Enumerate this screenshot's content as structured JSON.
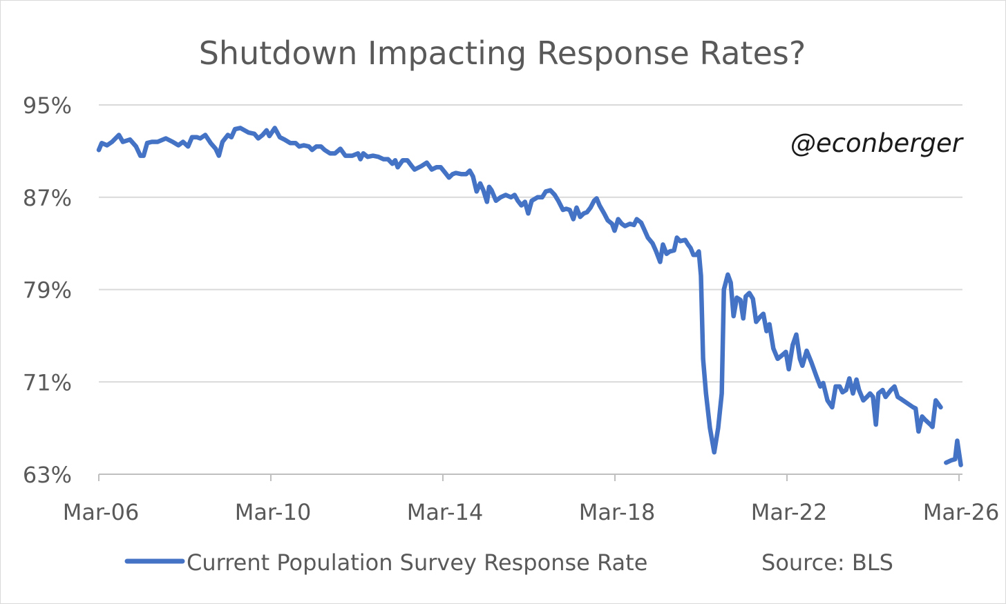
{
  "chart_data": {
    "type": "line",
    "title": "Shutdown Impacting Response Rates?",
    "watermark": "@econberger",
    "source": "Source: BLS",
    "xlabel": "",
    "ylabel": "",
    "x_unit": "months since Mar-2006",
    "x_ticks": [
      {
        "month": 0,
        "label": "Mar-06"
      },
      {
        "month": 48,
        "label": "Mar-10"
      },
      {
        "month": 96,
        "label": "Mar-14"
      },
      {
        "month": 144,
        "label": "Mar-18"
      },
      {
        "month": 192,
        "label": "Mar-22"
      },
      {
        "month": 240,
        "label": "Mar-26"
      }
    ],
    "y_ticks": [
      {
        "value": 95,
        "label": "95%"
      },
      {
        "value": 87,
        "label": "87%"
      },
      {
        "value": 79,
        "label": "79%"
      },
      {
        "value": 71,
        "label": "71%"
      },
      {
        "value": 63,
        "label": "63%"
      }
    ],
    "xlim": [
      0,
      240
    ],
    "ylim": [
      63,
      95
    ],
    "grid": true,
    "legend_position": "bottom",
    "colors": {
      "line": "#4472C4",
      "grid": "#d9d9d9",
      "axis": "#bfbfbf",
      "text": "#595959",
      "watermark": "#1a1a1a"
    },
    "series": [
      {
        "name": "Current Population Survey Response Rate",
        "segments": [
          [
            [
              0,
              91.1
            ],
            [
              0.8,
              91.7
            ],
            [
              2.3,
              91.5
            ],
            [
              3.7,
              91.8
            ],
            [
              5.6,
              92.4
            ],
            [
              6.7,
              91.8
            ],
            [
              8.7,
              92.0
            ],
            [
              10.4,
              91.4
            ],
            [
              11.6,
              90.6
            ],
            [
              12.5,
              90.6
            ],
            [
              13.5,
              91.7
            ],
            [
              14.8,
              91.8
            ],
            [
              16.4,
              91.8
            ],
            [
              18.7,
              92.1
            ],
            [
              20.6,
              91.8
            ],
            [
              22.2,
              91.5
            ],
            [
              23.5,
              91.8
            ],
            [
              24.9,
              91.4
            ],
            [
              26,
              92.2
            ],
            [
              27.4,
              92.2
            ],
            [
              28.3,
              92.1
            ],
            [
              29.7,
              92.4
            ],
            [
              31.2,
              91.7
            ],
            [
              32.6,
              91.2
            ],
            [
              33.5,
              90.6
            ],
            [
              34.5,
              91.8
            ],
            [
              36,
              92.4
            ],
            [
              37,
              92.2
            ],
            [
              38,
              92.9
            ],
            [
              39.5,
              93.0
            ],
            [
              41.8,
              92.6
            ],
            [
              43.4,
              92.5
            ],
            [
              44.5,
              92.1
            ],
            [
              45.7,
              92.4
            ],
            [
              46.8,
              92.8
            ],
            [
              47.6,
              92.3
            ],
            [
              49.1,
              93.0
            ],
            [
              50.5,
              92.2
            ],
            [
              51.8,
              92.0
            ],
            [
              53.4,
              91.7
            ],
            [
              54.9,
              91.7
            ],
            [
              55.9,
              91.4
            ],
            [
              57.2,
              91.5
            ],
            [
              58.6,
              91.4
            ],
            [
              59.5,
              91.1
            ],
            [
              60.7,
              91.4
            ],
            [
              62,
              91.4
            ],
            [
              63,
              91.1
            ],
            [
              64.5,
              90.8
            ],
            [
              65.9,
              90.8
            ],
            [
              67.4,
              91.2
            ],
            [
              68.8,
              90.6
            ],
            [
              70.7,
              90.6
            ],
            [
              72.3,
              90.8
            ],
            [
              73,
              90.3
            ],
            [
              73.8,
              90.8
            ],
            [
              75,
              90.5
            ],
            [
              76.5,
              90.6
            ],
            [
              78,
              90.5
            ],
            [
              79.4,
              90.3
            ],
            [
              80.7,
              90.3
            ],
            [
              81.9,
              89.9
            ],
            [
              82.7,
              90.2
            ],
            [
              83.4,
              89.6
            ],
            [
              84.8,
              90.2
            ],
            [
              86.1,
              90.2
            ],
            [
              87.3,
              89.7
            ],
            [
              88.1,
              89.4
            ],
            [
              90,
              89.7
            ],
            [
              91.5,
              90.0
            ],
            [
              92.9,
              89.4
            ],
            [
              94.2,
              89.6
            ],
            [
              95.4,
              89.6
            ],
            [
              96.7,
              89.1
            ],
            [
              97.7,
              88.7
            ],
            [
              98.7,
              89.0
            ],
            [
              99.6,
              89.1
            ],
            [
              101.2,
              89.0
            ],
            [
              102.5,
              89.0
            ],
            [
              103.5,
              89.3
            ],
            [
              104.4,
              88.8
            ],
            [
              105.4,
              87.5
            ],
            [
              106.4,
              88.2
            ],
            [
              107.3,
              87.6
            ],
            [
              108.3,
              86.6
            ],
            [
              108.9,
              87.9
            ],
            [
              109.6,
              87.6
            ],
            [
              110.8,
              86.7
            ],
            [
              112.1,
              87.0
            ],
            [
              113.5,
              87.2
            ],
            [
              115,
              87.0
            ],
            [
              116,
              87.2
            ],
            [
              116.9,
              86.7
            ],
            [
              117.9,
              86.3
            ],
            [
              118.9,
              86.6
            ],
            [
              119.8,
              85.6
            ],
            [
              120.8,
              86.7
            ],
            [
              122.4,
              87.0
            ],
            [
              123.7,
              87.0
            ],
            [
              124.7,
              87.5
            ],
            [
              126,
              87.6
            ],
            [
              127.2,
              87.2
            ],
            [
              128.2,
              86.7
            ],
            [
              129.5,
              85.9
            ],
            [
              130.4,
              86.0
            ],
            [
              131.4,
              85.9
            ],
            [
              132.4,
              85.1
            ],
            [
              133.3,
              86.1
            ],
            [
              134.3,
              85.3
            ],
            [
              135.3,
              85.6
            ],
            [
              136.2,
              85.7
            ],
            [
              137.2,
              86.1
            ],
            [
              138.2,
              86.7
            ],
            [
              138.9,
              86.9
            ],
            [
              139.7,
              86.3
            ],
            [
              141,
              85.6
            ],
            [
              142,
              85.0
            ],
            [
              143.2,
              84.7
            ],
            [
              143.9,
              84.1
            ],
            [
              144.9,
              85.1
            ],
            [
              145.9,
              84.7
            ],
            [
              146.8,
              84.5
            ],
            [
              148.2,
              84.7
            ],
            [
              149.3,
              84.6
            ],
            [
              150.1,
              85.1
            ],
            [
              151.3,
              84.8
            ],
            [
              152.2,
              84.2
            ],
            [
              153.2,
              83.5
            ],
            [
              154.5,
              83.0
            ],
            [
              155.5,
              82.3
            ],
            [
              156.6,
              81.4
            ],
            [
              157.4,
              82.9
            ],
            [
              158.4,
              82.1
            ],
            [
              159.3,
              82.3
            ],
            [
              160.5,
              82.4
            ],
            [
              161.3,
              83.5
            ],
            [
              162.2,
              83.2
            ],
            [
              163.6,
              83.3
            ],
            [
              164.4,
              82.9
            ],
            [
              165.1,
              82.6
            ],
            [
              165.9,
              82.0
            ],
            [
              166.7,
              82.0
            ],
            [
              167.4,
              82.3
            ],
            [
              168,
              80.2
            ],
            [
              168.6,
              73.0
            ],
            [
              169.4,
              70.0
            ],
            [
              170.5,
              67.0
            ],
            [
              171.7,
              64.9
            ],
            [
              172.8,
              67.0
            ],
            [
              173.8,
              70.0
            ],
            [
              174.4,
              79.0
            ],
            [
              175.5,
              80.3
            ],
            [
              176.3,
              79.6
            ],
            [
              177.1,
              76.7
            ],
            [
              178,
              78.3
            ],
            [
              179,
              78.1
            ],
            [
              179.8,
              76.5
            ],
            [
              180.5,
              78.4
            ],
            [
              181.5,
              78.7
            ],
            [
              182.5,
              78.2
            ],
            [
              183.4,
              76.2
            ],
            [
              184.4,
              76.6
            ],
            [
              185.4,
              76.9
            ],
            [
              186.3,
              75.4
            ],
            [
              187.1,
              76.0
            ],
            [
              188.2,
              73.9
            ],
            [
              189.4,
              73.0
            ],
            [
              190.6,
              73.3
            ],
            [
              191.7,
              73.6
            ],
            [
              192.5,
              72.1
            ],
            [
              193.6,
              74.2
            ],
            [
              194.6,
              75.1
            ],
            [
              195.6,
              73.0
            ],
            [
              196.3,
              72.4
            ],
            [
              197.5,
              73.7
            ],
            [
              198.8,
              72.7
            ],
            [
              200.2,
              71.5
            ],
            [
              201.3,
              70.6
            ],
            [
              202.1,
              70.9
            ],
            [
              203.3,
              69.4
            ],
            [
              204.6,
              68.8
            ],
            [
              205.6,
              70.6
            ],
            [
              206.7,
              70.6
            ],
            [
              207.5,
              70.1
            ],
            [
              208.5,
              70.3
            ],
            [
              209.4,
              71.3
            ],
            [
              210.4,
              70.0
            ],
            [
              211.4,
              71.2
            ],
            [
              212.1,
              70.3
            ],
            [
              213.3,
              69.4
            ],
            [
              214.3,
              69.7
            ],
            [
              215.2,
              70.0
            ],
            [
              216,
              69.7
            ],
            [
              216.8,
              67.3
            ],
            [
              217.5,
              70.0
            ],
            [
              218.7,
              70.3
            ],
            [
              219.5,
              69.7
            ],
            [
              221,
              70.3
            ],
            [
              222,
              70.6
            ],
            [
              222.9,
              69.7
            ],
            [
              223.9,
              69.5
            ],
            [
              225.8,
              69.1
            ],
            [
              227.2,
              68.8
            ],
            [
              227.9,
              68.7
            ],
            [
              228.7,
              66.7
            ],
            [
              229.7,
              68.0
            ],
            [
              230.6,
              67.7
            ],
            [
              232,
              67.3
            ],
            [
              232.6,
              67.1
            ],
            [
              233.5,
              69.4
            ],
            [
              234.9,
              68.8
            ]
          ],
          [
            [
              236.4,
              64.0
            ],
            [
              237.8,
              64.2
            ],
            [
              238.9,
              64.3
            ],
            [
              239.5,
              65.9
            ],
            [
              240.5,
              63.8
            ]
          ]
        ]
      }
    ]
  }
}
